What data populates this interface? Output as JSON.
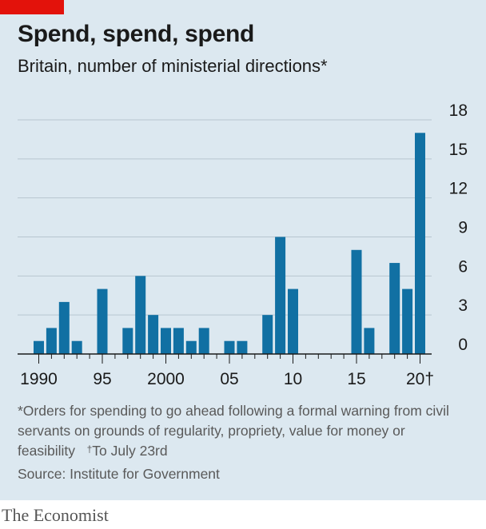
{
  "colors": {
    "background": "#dce8f0",
    "accent_tag": "#e3120b",
    "bar": "#1170a3",
    "grid": "#b7c6d0",
    "axis": "#1a1a1a",
    "text": "#1a1a1a",
    "muted_text": "#595959"
  },
  "header": {
    "title": "Spend, spend, spend",
    "subtitle": "Britain, number of ministerial directions*"
  },
  "chart_data": {
    "type": "bar",
    "title": "Spend, spend, spend",
    "subtitle": "Britain, number of ministerial directions*",
    "x": [
      1990,
      1991,
      1992,
      1993,
      1994,
      1995,
      1996,
      1997,
      1998,
      1999,
      2000,
      2001,
      2002,
      2003,
      2004,
      2005,
      2006,
      2007,
      2008,
      2009,
      2010,
      2011,
      2012,
      2013,
      2014,
      2015,
      2016,
      2017,
      2018,
      2019,
      2020
    ],
    "values": [
      1,
      2,
      4,
      1,
      0,
      5,
      0,
      2,
      6,
      3,
      2,
      2,
      1,
      2,
      0,
      1,
      1,
      0,
      3,
      9,
      5,
      0,
      0,
      0,
      0,
      8,
      2,
      0,
      7,
      5,
      17
    ],
    "x_tick_labels": [
      {
        "year": 1990,
        "label": "1990"
      },
      {
        "year": 1995,
        "label": "95"
      },
      {
        "year": 2000,
        "label": "2000"
      },
      {
        "year": 2005,
        "label": "05"
      },
      {
        "year": 2010,
        "label": "10"
      },
      {
        "year": 2015,
        "label": "15"
      },
      {
        "year": 2020,
        "label": "20†"
      }
    ],
    "y_ticks": [
      0,
      3,
      6,
      9,
      12,
      15,
      18
    ],
    "y_tick_labels": [
      "0",
      "3",
      "6",
      "9",
      "12",
      "15",
      "18"
    ],
    "ylim": [
      0,
      18
    ],
    "y_axis_side": "right",
    "grid": true
  },
  "footer": {
    "note_text": "*Orders for spending to go ahead following a formal warning from civil servants on grounds of regularity, propriety, value for money or feasibility",
    "dagger_mark": "†",
    "dagger_text": "To July 23rd",
    "source": "Source: Institute for Government",
    "brand": "The Economist"
  }
}
